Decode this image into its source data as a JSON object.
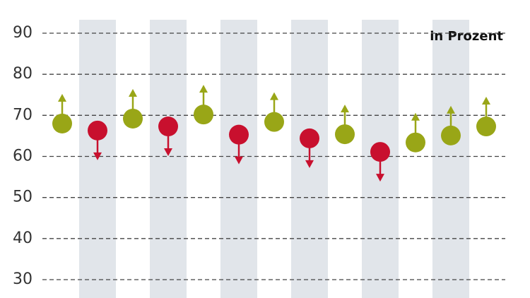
{
  "chart_data": {
    "type": "dot-arrow",
    "annotation": "in Prozent",
    "categories": [
      null,
      null,
      null,
      null,
      null,
      null,
      null,
      null,
      null,
      null,
      null,
      null,
      null
    ],
    "values": [
      68.0,
      66.3,
      69.2,
      67.3,
      70.2,
      65.3,
      68.4,
      64.4,
      65.4,
      61.1,
      63.4,
      65.1,
      67.3
    ],
    "arrows": [
      "up",
      "down",
      "up",
      "down",
      "up",
      "down",
      "up",
      "down",
      "up",
      "down",
      "up",
      "up",
      "up"
    ],
    "arrow_colors": {
      "up": "#99a617",
      "down": "#c8102e"
    },
    "ylim": [
      30,
      90
    ],
    "yticks": [
      30,
      40,
      50,
      60,
      70,
      80,
      90
    ],
    "grid": true
  }
}
